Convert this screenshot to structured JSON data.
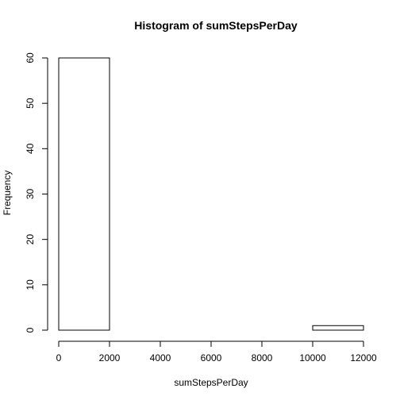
{
  "chart_data": {
    "type": "bar",
    "title": "Histogram of sumStepsPerDay",
    "xlabel": "sumStepsPerDay",
    "ylabel": "Frequency",
    "bins": [
      {
        "start": 0,
        "end": 2000,
        "count": 60
      },
      {
        "start": 2000,
        "end": 4000,
        "count": 0
      },
      {
        "start": 4000,
        "end": 6000,
        "count": 0
      },
      {
        "start": 6000,
        "end": 8000,
        "count": 0
      },
      {
        "start": 8000,
        "end": 10000,
        "count": 0
      },
      {
        "start": 10000,
        "end": 12000,
        "count": 1
      }
    ],
    "xlim": [
      0,
      12000
    ],
    "ylim": [
      0,
      60
    ],
    "xticks": [
      0,
      2000,
      4000,
      6000,
      8000,
      10000,
      12000
    ],
    "yticks": [
      0,
      10,
      20,
      30,
      40,
      50,
      60
    ],
    "grid": false,
    "legend": "none"
  }
}
